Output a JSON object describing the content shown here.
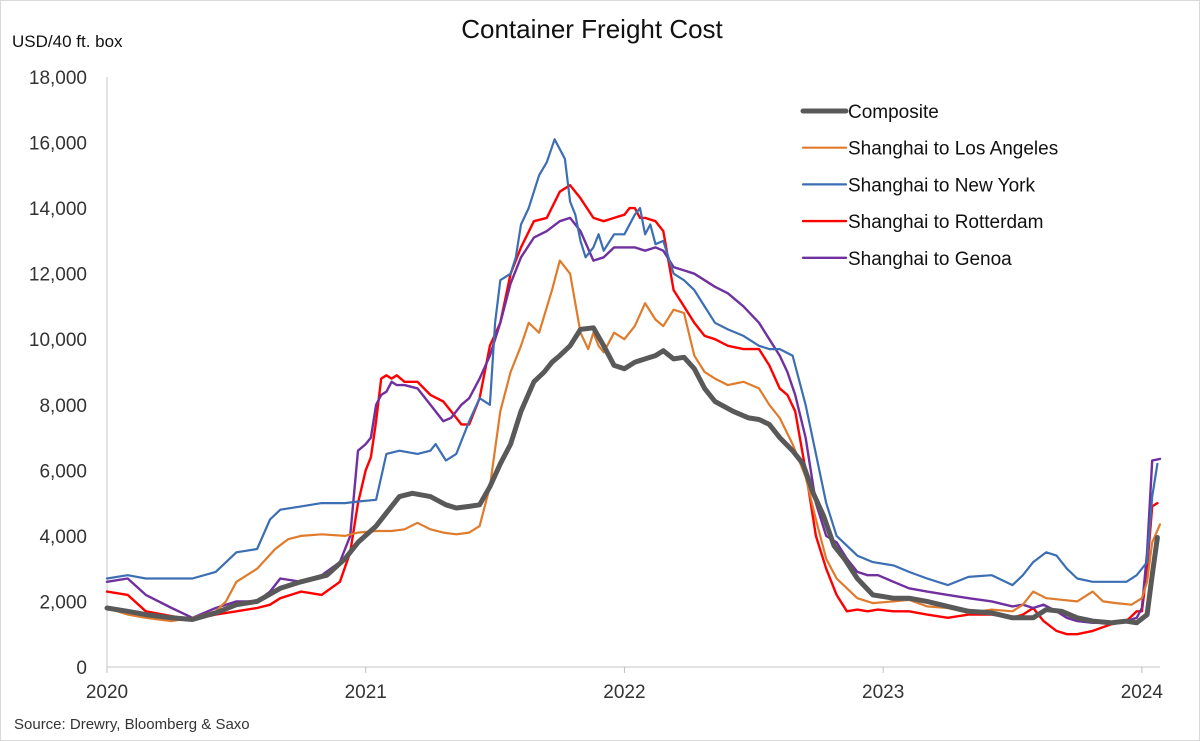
{
  "chart_data": {
    "type": "line",
    "title": "Container Freight Cost",
    "ylabel": "USD/40 ft. box",
    "xlabel": "",
    "source": "Source: Drewry, Bloomberg & Saxo",
    "ylim": [
      0,
      18000
    ],
    "xlim": [
      2020.0,
      2024.07
    ],
    "yticks": [
      0,
      2000,
      4000,
      6000,
      8000,
      10000,
      12000,
      14000,
      16000,
      18000
    ],
    "ytick_labels": [
      "0",
      "2,000",
      "4,000",
      "6,000",
      "8,000",
      "10,000",
      "12,000",
      "14,000",
      "16,000",
      "18,000"
    ],
    "xticks": [
      2020,
      2021,
      2022,
      2023,
      2024
    ],
    "xtick_labels": [
      "2020",
      "2021",
      "2022",
      "2023",
      "2024"
    ],
    "grid": false,
    "legend_position": "top-right",
    "series": [
      {
        "name": "Composite",
        "color": "#595959",
        "width": 5,
        "x": [
          2020.0,
          2020.08,
          2020.15,
          2020.25,
          2020.33,
          2020.42,
          2020.5,
          2020.58,
          2020.67,
          2020.75,
          2020.85,
          2020.92,
          2020.97,
          2021.04,
          2021.08,
          2021.13,
          2021.18,
          2021.25,
          2021.31,
          2021.35,
          2021.4,
          2021.44,
          2021.48,
          2021.52,
          2021.56,
          2021.6,
          2021.65,
          2021.69,
          2021.72,
          2021.75,
          2021.79,
          2021.83,
          2021.88,
          2021.92,
          2021.96,
          2022.0,
          2022.04,
          2022.08,
          2022.12,
          2022.15,
          2022.19,
          2022.23,
          2022.27,
          2022.31,
          2022.35,
          2022.42,
          2022.48,
          2022.52,
          2022.56,
          2022.6,
          2022.65,
          2022.69,
          2022.73,
          2022.77,
          2022.81,
          2022.85,
          2022.9,
          2022.96,
          2023.04,
          2023.1,
          2023.17,
          2023.25,
          2023.33,
          2023.42,
          2023.5,
          2023.58,
          2023.63,
          2023.69,
          2023.75,
          2023.81,
          2023.88,
          2023.94,
          2023.98,
          2024.02,
          2024.04,
          2024.06
        ],
        "y": [
          1800,
          1700,
          1600,
          1500,
          1450,
          1650,
          1900,
          2000,
          2400,
          2600,
          2800,
          3300,
          3800,
          4300,
          4700,
          5200,
          5300,
          5200,
          4950,
          4850,
          4900,
          4950,
          5500,
          6200,
          6800,
          7800,
          8700,
          9000,
          9300,
          9500,
          9800,
          10300,
          10350,
          9800,
          9200,
          9100,
          9300,
          9400,
          9500,
          9650,
          9400,
          9450,
          9100,
          8500,
          8100,
          7800,
          7600,
          7550,
          7400,
          7000,
          6600,
          6200,
          5300,
          4600,
          3700,
          3300,
          2700,
          2200,
          2100,
          2100,
          2000,
          1850,
          1700,
          1650,
          1500,
          1500,
          1750,
          1700,
          1500,
          1400,
          1350,
          1400,
          1350,
          1600,
          2800,
          3950
        ]
      },
      {
        "name": "Shanghai to Los Angeles",
        "color": "#e07b2c",
        "width": 2.2,
        "x": [
          2020.0,
          2020.08,
          2020.15,
          2020.25,
          2020.33,
          2020.42,
          2020.46,
          2020.5,
          2020.58,
          2020.65,
          2020.7,
          2020.75,
          2020.83,
          2020.92,
          2020.97,
          2021.04,
          2021.1,
          2021.15,
          2021.2,
          2021.25,
          2021.3,
          2021.35,
          2021.4,
          2021.44,
          2021.48,
          2021.52,
          2021.56,
          2021.6,
          2021.63,
          2021.67,
          2021.72,
          2021.75,
          2021.79,
          2021.83,
          2021.86,
          2021.88,
          2021.9,
          2021.92,
          2021.96,
          2022.0,
          2022.04,
          2022.08,
          2022.12,
          2022.15,
          2022.19,
          2022.23,
          2022.27,
          2022.31,
          2022.35,
          2022.4,
          2022.46,
          2022.52,
          2022.56,
          2022.6,
          2022.65,
          2022.7,
          2022.74,
          2022.78,
          2022.82,
          2022.86,
          2022.9,
          2022.96,
          2023.04,
          2023.1,
          2023.17,
          2023.25,
          2023.33,
          2023.42,
          2023.5,
          2023.54,
          2023.58,
          2023.63,
          2023.69,
          2023.75,
          2023.81,
          2023.85,
          2023.9,
          2023.96,
          2024.0,
          2024.02,
          2024.04,
          2024.07
        ],
        "y": [
          1800,
          1600,
          1500,
          1400,
          1500,
          1700,
          2000,
          2600,
          3000,
          3600,
          3900,
          4000,
          4050,
          4000,
          4100,
          4150,
          4150,
          4200,
          4400,
          4200,
          4100,
          4050,
          4100,
          4300,
          5500,
          7800,
          9000,
          9800,
          10500,
          10200,
          11500,
          12400,
          12000,
          10200,
          9700,
          10200,
          9800,
          9600,
          10200,
          10000,
          10400,
          11100,
          10600,
          10400,
          10900,
          10800,
          9500,
          9000,
          8800,
          8600,
          8700,
          8500,
          8000,
          7600,
          6800,
          5800,
          4500,
          3300,
          2700,
          2400,
          2100,
          1950,
          2000,
          2050,
          1850,
          1800,
          1650,
          1750,
          1700,
          1900,
          2300,
          2100,
          2050,
          2000,
          2300,
          2000,
          1950,
          1900,
          2100,
          2600,
          3800,
          4350
        ]
      },
      {
        "name": "Shanghai to New York",
        "color": "#3c6eb4",
        "width": 2.2,
        "x": [
          2020.0,
          2020.08,
          2020.15,
          2020.25,
          2020.33,
          2020.42,
          2020.5,
          2020.58,
          2020.63,
          2020.67,
          2020.75,
          2020.83,
          2020.92,
          2020.97,
          2021.04,
          2021.08,
          2021.13,
          2021.2,
          2021.25,
          2021.27,
          2021.31,
          2021.35,
          2021.4,
          2021.44,
          2021.48,
          2021.5,
          2021.52,
          2021.56,
          2021.58,
          2021.6,
          2021.63,
          2021.67,
          2021.7,
          2021.73,
          2021.75,
          2021.77,
          2021.79,
          2021.81,
          2021.83,
          2021.85,
          2021.88,
          2021.9,
          2021.92,
          2021.96,
          2022.0,
          2022.04,
          2022.06,
          2022.08,
          2022.1,
          2022.12,
          2022.15,
          2022.19,
          2022.23,
          2022.27,
          2022.31,
          2022.35,
          2022.4,
          2022.46,
          2022.52,
          2022.56,
          2022.6,
          2022.65,
          2022.7,
          2022.74,
          2022.78,
          2022.82,
          2022.86,
          2022.9,
          2022.96,
          2023.04,
          2023.1,
          2023.17,
          2023.25,
          2023.33,
          2023.42,
          2023.5,
          2023.54,
          2023.58,
          2023.63,
          2023.67,
          2023.71,
          2023.75,
          2023.81,
          2023.88,
          2023.94,
          2023.98,
          2024.02,
          2024.04,
          2024.06
        ],
        "y": [
          2700,
          2800,
          2700,
          2700,
          2700,
          2900,
          3500,
          3600,
          4500,
          4800,
          4900,
          5000,
          5000,
          5050,
          5100,
          6500,
          6600,
          6500,
          6600,
          6800,
          6300,
          6500,
          7500,
          8200,
          8000,
          10500,
          11800,
          12000,
          12500,
          13500,
          14000,
          15000,
          15400,
          16100,
          15800,
          15500,
          14200,
          13800,
          13000,
          12500,
          12800,
          13200,
          12700,
          13200,
          13200,
          13800,
          14000,
          13200,
          13500,
          12900,
          13000,
          12000,
          11800,
          11500,
          11000,
          10500,
          10300,
          10100,
          9800,
          9700,
          9700,
          9500,
          8000,
          6500,
          5000,
          4000,
          3700,
          3400,
          3200,
          3100,
          2900,
          2700,
          2500,
          2750,
          2800,
          2500,
          2800,
          3200,
          3500,
          3400,
          3000,
          2700,
          2600,
          2600,
          2600,
          2800,
          3200,
          5200,
          6200
        ]
      },
      {
        "name": "Shanghai to Rotterdam",
        "color": "#ff0000",
        "width": 2.4,
        "x": [
          2020.0,
          2020.08,
          2020.15,
          2020.25,
          2020.33,
          2020.42,
          2020.5,
          2020.58,
          2020.63,
          2020.67,
          2020.75,
          2020.83,
          2020.9,
          2020.94,
          2020.97,
          2021.0,
          2021.02,
          2021.04,
          2021.06,
          2021.08,
          2021.1,
          2021.12,
          2021.15,
          2021.2,
          2021.25,
          2021.3,
          2021.33,
          2021.37,
          2021.4,
          2021.44,
          2021.48,
          2021.52,
          2021.56,
          2021.6,
          2021.65,
          2021.7,
          2021.75,
          2021.79,
          2021.83,
          2021.88,
          2021.92,
          2021.96,
          2022.0,
          2022.02,
          2022.04,
          2022.06,
          2022.08,
          2022.12,
          2022.15,
          2022.19,
          2022.23,
          2022.27,
          2022.31,
          2022.35,
          2022.4,
          2022.46,
          2022.52,
          2022.56,
          2022.6,
          2022.63,
          2022.66,
          2022.7,
          2022.74,
          2022.78,
          2022.82,
          2022.86,
          2022.9,
          2022.94,
          2022.98,
          2023.04,
          2023.1,
          2023.17,
          2023.25,
          2023.33,
          2023.42,
          2023.5,
          2023.54,
          2023.58,
          2023.62,
          2023.67,
          2023.71,
          2023.75,
          2023.81,
          2023.88,
          2023.94,
          2023.98,
          2024.0,
          2024.02,
          2024.04,
          2024.06
        ],
        "y": [
          2300,
          2200,
          1700,
          1550,
          1450,
          1600,
          1700,
          1800,
          1900,
          2100,
          2300,
          2200,
          2600,
          3500,
          5000,
          6000,
          6400,
          7500,
          8800,
          8900,
          8800,
          8900,
          8700,
          8700,
          8300,
          8100,
          7800,
          7400,
          7400,
          8200,
          9800,
          10500,
          12000,
          12800,
          13600,
          13700,
          14500,
          14700,
          14300,
          13700,
          13600,
          13700,
          13800,
          14000,
          14000,
          13700,
          13700,
          13600,
          13300,
          11500,
          11000,
          10500,
          10100,
          10000,
          9800,
          9700,
          9700,
          9200,
          8500,
          8300,
          7800,
          6000,
          4000,
          3000,
          2200,
          1700,
          1750,
          1700,
          1750,
          1700,
          1700,
          1600,
          1500,
          1600,
          1600,
          1500,
          1600,
          1800,
          1400,
          1100,
          1000,
          1000,
          1100,
          1300,
          1400,
          1700,
          1700,
          3000,
          4900,
          5000
        ]
      },
      {
        "name": "Shanghai to Genoa",
        "color": "#7030a0",
        "width": 2.4,
        "x": [
          2020.0,
          2020.08,
          2020.15,
          2020.25,
          2020.33,
          2020.42,
          2020.5,
          2020.58,
          2020.63,
          2020.67,
          2020.75,
          2020.83,
          2020.9,
          2020.94,
          2020.97,
          2021.0,
          2021.02,
          2021.04,
          2021.06,
          2021.08,
          2021.1,
          2021.12,
          2021.15,
          2021.2,
          2021.25,
          2021.3,
          2021.33,
          2021.37,
          2021.4,
          2021.44,
          2021.48,
          2021.52,
          2021.56,
          2021.6,
          2021.65,
          2021.7,
          2021.75,
          2021.79,
          2021.83,
          2021.88,
          2021.92,
          2021.96,
          2022.0,
          2022.04,
          2022.08,
          2022.12,
          2022.15,
          2022.19,
          2022.23,
          2022.27,
          2022.31,
          2022.35,
          2022.4,
          2022.46,
          2022.52,
          2022.56,
          2022.6,
          2022.63,
          2022.66,
          2022.7,
          2022.74,
          2022.78,
          2022.82,
          2022.86,
          2022.9,
          2022.94,
          2022.98,
          2023.04,
          2023.1,
          2023.17,
          2023.25,
          2023.33,
          2023.42,
          2023.5,
          2023.54,
          2023.58,
          2023.62,
          2023.67,
          2023.71,
          2023.75,
          2023.81,
          2023.88,
          2023.94,
          2023.98,
          2024.0,
          2024.02,
          2024.04,
          2024.07
        ],
        "y": [
          2600,
          2700,
          2200,
          1800,
          1500,
          1800,
          2000,
          2000,
          2300,
          2700,
          2600,
          2800,
          3200,
          4000,
          6600,
          6800,
          7000,
          8000,
          8300,
          8400,
          8700,
          8600,
          8600,
          8500,
          8000,
          7500,
          7600,
          8000,
          8200,
          8800,
          9500,
          10500,
          11700,
          12500,
          13100,
          13300,
          13600,
          13700,
          13300,
          12400,
          12500,
          12800,
          12800,
          12800,
          12700,
          12800,
          12700,
          12200,
          12100,
          12000,
          11800,
          11600,
          11400,
          11000,
          10500,
          10000,
          9500,
          9000,
          8300,
          7000,
          5000,
          4000,
          3800,
          3300,
          2900,
          2800,
          2800,
          2600,
          2400,
          2300,
          2200,
          2100,
          2000,
          1850,
          1900,
          1800,
          1900,
          1700,
          1500,
          1400,
          1350,
          1350,
          1400,
          1500,
          1800,
          3500,
          6300,
          6350
        ]
      }
    ]
  }
}
